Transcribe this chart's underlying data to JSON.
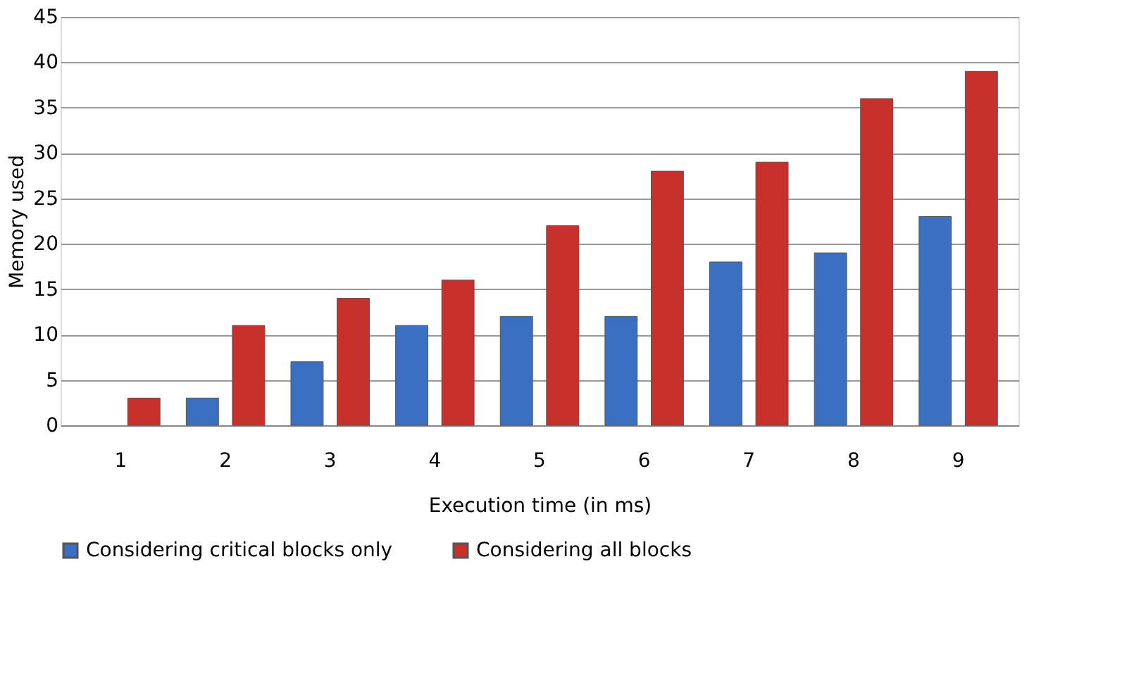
{
  "chart_data": {
    "type": "bar",
    "xlabel": "Execution time (in ms)",
    "ylabel": "Memory  used",
    "categories": [
      "1",
      "2",
      "3",
      "4",
      "5",
      "6",
      "7",
      "8",
      "9"
    ],
    "series": [
      {
        "name": "Considering critical blocks only",
        "color": "#3b6fc2",
        "values": [
          null,
          3,
          7,
          11,
          12,
          12,
          18,
          19,
          23
        ]
      },
      {
        "name": "Considering all blocks",
        "color": "#c8302c",
        "values": [
          3,
          11,
          14,
          16,
          22,
          28,
          29,
          36,
          39
        ]
      }
    ],
    "ylim": [
      0,
      45
    ],
    "yticks": [
      0,
      5,
      10,
      15,
      20,
      25,
      30,
      35,
      40,
      45
    ],
    "grid": "y",
    "legend": "bottom"
  }
}
